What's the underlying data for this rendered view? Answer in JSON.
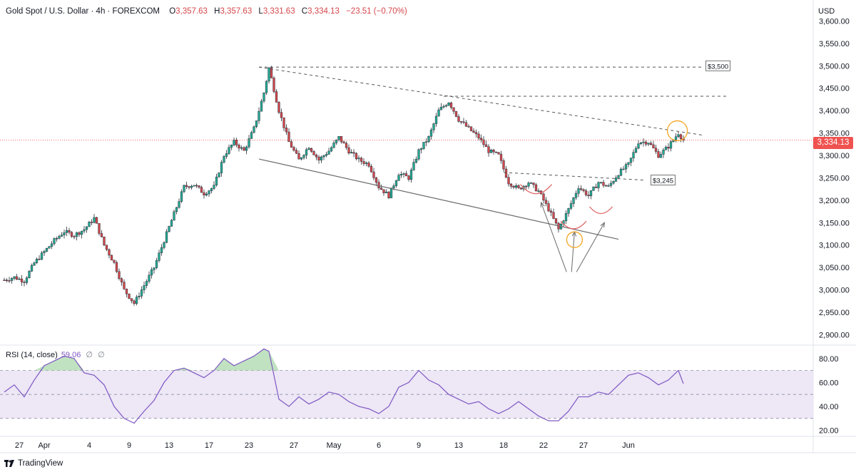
{
  "header": {
    "symbol": "Gold Spot / U.S. Dollar · 4h · FOREXCOM",
    "open_label": "O",
    "open": "3,357.63",
    "high_label": "H",
    "high": "3,357.63",
    "low_label": "L",
    "low": "3,331.63",
    "close_label": "C",
    "close": "3,334.13",
    "change": "−23.51 (−0.70%)"
  },
  "currency": "USD",
  "last_price": "3,334.13",
  "branding": "TradingView",
  "rsi": {
    "label": "RSI (14, close)",
    "value": "59.06",
    "extra1": "∅",
    "extra2": "∅"
  },
  "colors": {
    "up": "#22ab94",
    "down": "#d5474b",
    "rsi_line": "#7e57c2",
    "rsi_band": "#ede7f6",
    "orange": "#f5a623",
    "price_tag": "#ef5350"
  },
  "chart_data": {
    "type": "candlestick",
    "interval": "4h",
    "y_axis_ticks": [
      "3,600.00",
      "3,550.00",
      "3,500.00",
      "3,450.00",
      "3,400.00",
      "3,350.00",
      "3,300.00",
      "3,250.00",
      "3,200.00",
      "3,150.00",
      "3,100.00",
      "3,050.00",
      "3,000.00",
      "2,950.00",
      "2,900.00"
    ],
    "y_tick_values": [
      3600,
      3550,
      3500,
      3450,
      3400,
      3350,
      3300,
      3250,
      3200,
      3150,
      3100,
      3050,
      3000,
      2950,
      2900
    ],
    "x_axis_ticks": [
      {
        "label": "27",
        "t": 3
      },
      {
        "label": "Apr",
        "t": 8
      },
      {
        "label": "4",
        "t": 17
      },
      {
        "label": "9",
        "t": 25
      },
      {
        "label": "13",
        "t": 33
      },
      {
        "label": "17",
        "t": 41
      },
      {
        "label": "23",
        "t": 49
      },
      {
        "label": "27",
        "t": 58
      },
      {
        "label": "May",
        "t": 66
      },
      {
        "label": "6",
        "t": 75
      },
      {
        "label": "9",
        "t": 83
      },
      {
        "label": "13",
        "t": 91
      },
      {
        "label": "18",
        "t": 100
      },
      {
        "label": "22",
        "t": 108
      },
      {
        "label": "27",
        "t": 116
      },
      {
        "label": "Jun",
        "t": 125
      }
    ],
    "ylim": [
      2880,
      3615
    ],
    "price_path": [
      [
        0,
        3022
      ],
      [
        2,
        3028
      ],
      [
        4,
        3020
      ],
      [
        6,
        3060
      ],
      [
        8,
        3085
      ],
      [
        10,
        3110
      ],
      [
        12,
        3130
      ],
      [
        14,
        3122
      ],
      [
        16,
        3135
      ],
      [
        18,
        3160
      ],
      [
        20,
        3100
      ],
      [
        22,
        3060
      ],
      [
        24,
        3000
      ],
      [
        26,
        2970
      ],
      [
        28,
        3010
      ],
      [
        30,
        3050
      ],
      [
        32,
        3110
      ],
      [
        34,
        3170
      ],
      [
        36,
        3230
      ],
      [
        38,
        3235
      ],
      [
        40,
        3215
      ],
      [
        42,
        3230
      ],
      [
        44,
        3300
      ],
      [
        46,
        3330
      ],
      [
        48,
        3310
      ],
      [
        50,
        3360
      ],
      [
        52,
        3440
      ],
      [
        53,
        3495
      ],
      [
        55,
        3400
      ],
      [
        57,
        3330
      ],
      [
        59,
        3290
      ],
      [
        61,
        3320
      ],
      [
        63,
        3290
      ],
      [
        65,
        3310
      ],
      [
        67,
        3340
      ],
      [
        69,
        3310
      ],
      [
        71,
        3290
      ],
      [
        73,
        3280
      ],
      [
        75,
        3230
      ],
      [
        77,
        3210
      ],
      [
        79,
        3260
      ],
      [
        81,
        3250
      ],
      [
        83,
        3310
      ],
      [
        85,
        3340
      ],
      [
        87,
        3400
      ],
      [
        89,
        3420
      ],
      [
        91,
        3380
      ],
      [
        93,
        3360
      ],
      [
        95,
        3340
      ],
      [
        97,
        3310
      ],
      [
        99,
        3300
      ],
      [
        101,
        3240
      ],
      [
        103,
        3225
      ],
      [
        105,
        3240
      ],
      [
        107,
        3220
      ],
      [
        109,
        3180
      ],
      [
        111,
        3135
      ],
      [
        113,
        3180
      ],
      [
        115,
        3230
      ],
      [
        117,
        3210
      ],
      [
        119,
        3240
      ],
      [
        121,
        3230
      ],
      [
        123,
        3260
      ],
      [
        125,
        3280
      ],
      [
        127,
        3330
      ],
      [
        129,
        3330
      ],
      [
        131,
        3300
      ],
      [
        133,
        3320
      ],
      [
        135,
        3350
      ],
      [
        136,
        3334
      ]
    ],
    "rsi_ylim": [
      15,
      90
    ],
    "rsi_levels": [
      70,
      50,
      30
    ],
    "rsi_ticks": [
      "80.00",
      "60.00",
      "40.00",
      "20.00"
    ],
    "rsi_tick_values": [
      80,
      60,
      40,
      20
    ],
    "rsi_path": [
      [
        0,
        52
      ],
      [
        2,
        58
      ],
      [
        4,
        48
      ],
      [
        6,
        62
      ],
      [
        8,
        74
      ],
      [
        10,
        78
      ],
      [
        12,
        82
      ],
      [
        14,
        80
      ],
      [
        16,
        68
      ],
      [
        18,
        66
      ],
      [
        20,
        58
      ],
      [
        22,
        40
      ],
      [
        24,
        30
      ],
      [
        26,
        26
      ],
      [
        28,
        36
      ],
      [
        30,
        45
      ],
      [
        32,
        60
      ],
      [
        34,
        70
      ],
      [
        36,
        72
      ],
      [
        38,
        68
      ],
      [
        40,
        64
      ],
      [
        42,
        70
      ],
      [
        44,
        80
      ],
      [
        46,
        74
      ],
      [
        48,
        78
      ],
      [
        50,
        82
      ],
      [
        52,
        88
      ],
      [
        53,
        86
      ],
      [
        55,
        46
      ],
      [
        57,
        40
      ],
      [
        59,
        48
      ],
      [
        61,
        42
      ],
      [
        63,
        46
      ],
      [
        65,
        52
      ],
      [
        67,
        50
      ],
      [
        69,
        44
      ],
      [
        71,
        40
      ],
      [
        73,
        38
      ],
      [
        75,
        34
      ],
      [
        77,
        40
      ],
      [
        79,
        56
      ],
      [
        81,
        60
      ],
      [
        83,
        70
      ],
      [
        85,
        62
      ],
      [
        87,
        58
      ],
      [
        89,
        50
      ],
      [
        91,
        46
      ],
      [
        93,
        42
      ],
      [
        95,
        44
      ],
      [
        97,
        38
      ],
      [
        99,
        34
      ],
      [
        101,
        38
      ],
      [
        103,
        44
      ],
      [
        105,
        38
      ],
      [
        107,
        32
      ],
      [
        109,
        28
      ],
      [
        111,
        28
      ],
      [
        113,
        36
      ],
      [
        115,
        48
      ],
      [
        117,
        48
      ],
      [
        119,
        52
      ],
      [
        121,
        50
      ],
      [
        123,
        58
      ],
      [
        125,
        66
      ],
      [
        127,
        68
      ],
      [
        129,
        64
      ],
      [
        131,
        58
      ],
      [
        133,
        62
      ],
      [
        135,
        70
      ],
      [
        136,
        59
      ]
    ],
    "annotations": [
      {
        "type": "label",
        "text": "$3,500",
        "price": 3500
      },
      {
        "type": "label",
        "text": "$3,245",
        "price": 3245
      }
    ]
  }
}
